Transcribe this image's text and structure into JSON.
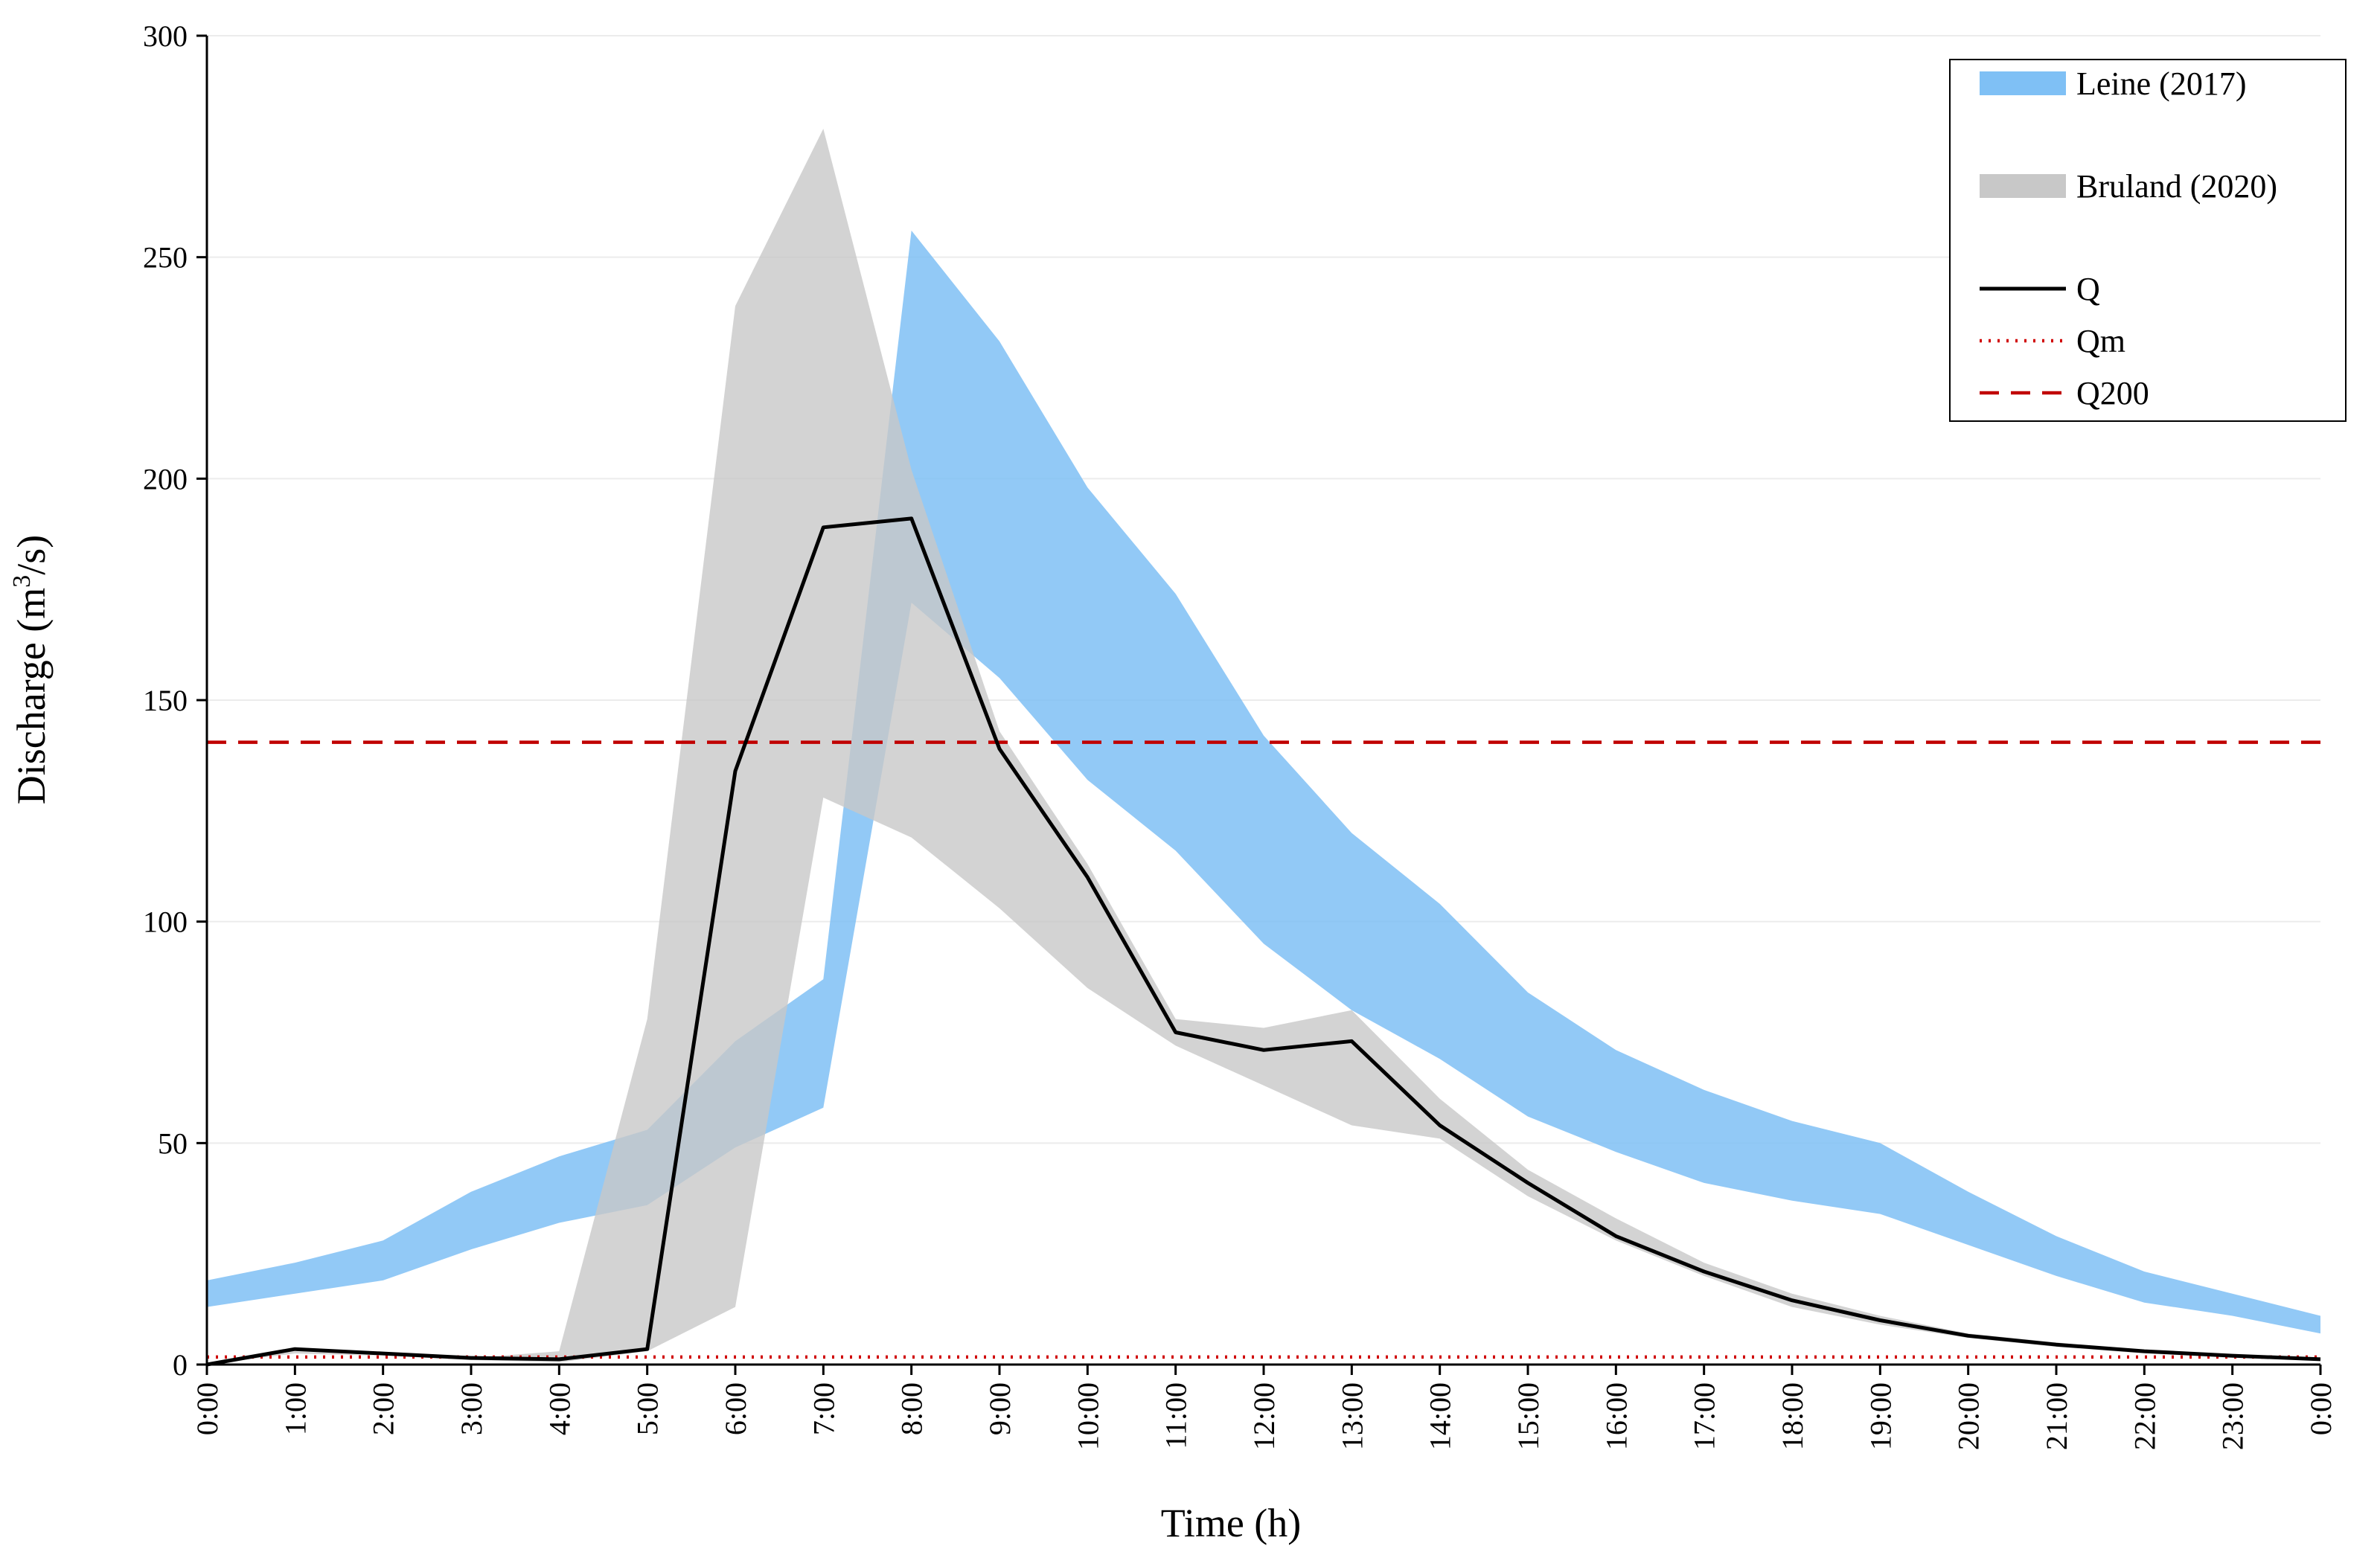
{
  "chart_data": {
    "type": "line",
    "title": "",
    "xlabel": "Time (h)",
    "ylabel_main": "Discharge (m",
    "ylabel_sup": "3",
    "ylabel_end": "/s)",
    "ylim": [
      0,
      300
    ],
    "yticks": [
      0,
      50,
      100,
      150,
      200,
      250,
      300
    ],
    "grid": true,
    "legend_position": "top-right",
    "categories": [
      "0:00",
      "1:00",
      "2:00",
      "3:00",
      "4:00",
      "5:00",
      "6:00",
      "7:00",
      "8:00",
      "9:00",
      "10:00",
      "11:00",
      "12:00",
      "13:00",
      "14:00",
      "15:00",
      "16:00",
      "17:00",
      "18:00",
      "19:00",
      "20:00",
      "21:00",
      "22:00",
      "23:00",
      "0:00"
    ],
    "bands": [
      {
        "name": "Leine (2017)",
        "color": "#7fc0f5",
        "upper_x": [
          0,
          1,
          2,
          3,
          4,
          5,
          6,
          7,
          7,
          8,
          9,
          10,
          11,
          12,
          13,
          14,
          15,
          16,
          17,
          18,
          19,
          20,
          21,
          22,
          23,
          24
        ],
        "upper_y": [
          19,
          23,
          28,
          39,
          47,
          53,
          73,
          87,
          87,
          256,
          231,
          198,
          174,
          142,
          120,
          104,
          84,
          71,
          62,
          55,
          50,
          39,
          29,
          21,
          16,
          11
        ],
        "lower_x": [
          0,
          1,
          2,
          3,
          4,
          5,
          6,
          7,
          7,
          8,
          9,
          10,
          11,
          12,
          13,
          14,
          15,
          16,
          17,
          18,
          19,
          20,
          21,
          22,
          23,
          24
        ],
        "lower_y": [
          13,
          16,
          19,
          26,
          32,
          36,
          49,
          58,
          58,
          172,
          155,
          132,
          116,
          95,
          80,
          69,
          56,
          48,
          41,
          37,
          34,
          27,
          20,
          14,
          11,
          7
        ]
      },
      {
        "name": "Bruland (2020)",
        "color": "#c8c8c8",
        "upper_x": [
          0,
          1,
          2,
          3,
          4,
          5,
          6,
          7,
          8,
          9,
          10,
          11,
          12,
          13,
          14,
          15,
          16,
          17,
          18,
          19,
          20,
          21,
          22,
          23,
          24
        ],
        "upper_y": [
          0,
          3,
          2,
          1.5,
          3,
          78,
          239,
          279,
          202,
          143,
          113,
          78,
          76,
          80,
          60,
          44,
          33,
          23,
          16,
          11,
          7,
          5,
          3,
          2,
          1.5
        ],
        "lower_x": [
          0,
          1,
          2,
          3,
          4,
          5,
          6,
          7,
          8,
          9,
          10,
          11,
          12,
          13,
          14,
          15,
          16,
          17,
          18,
          19,
          20,
          21,
          22,
          23,
          24
        ],
        "lower_y": [
          0,
          2.5,
          2,
          1,
          0.5,
          3,
          13,
          128,
          119,
          103,
          85,
          72,
          63,
          54,
          51,
          38,
          28,
          20,
          13,
          9,
          6,
          4,
          2.5,
          1.5,
          1
        ]
      }
    ],
    "series": [
      {
        "name": "Q",
        "color": "#000000",
        "style": "solid",
        "values": [
          0,
          3.5,
          2.5,
          1.5,
          1.2,
          3.5,
          134,
          189,
          191,
          139,
          110,
          75,
          71,
          73,
          54,
          41,
          29,
          21,
          14.5,
          10,
          6.5,
          4.5,
          3,
          2,
          1.2
        ]
      },
      {
        "name": "Qm",
        "color": "#d00000",
        "style": "dotted",
        "values": [
          1.7,
          1.7,
          1.7,
          1.7,
          1.7,
          1.7,
          1.7,
          1.7,
          1.7,
          1.7,
          1.7,
          1.7,
          1.7,
          1.7,
          1.7,
          1.7,
          1.7,
          1.7,
          1.7,
          1.7,
          1.7,
          1.7,
          1.7,
          1.7,
          1.7
        ]
      },
      {
        "name": "Q200",
        "color": "#c00000",
        "style": "dashed",
        "values": [
          140.5,
          140.5,
          140.5,
          140.5,
          140.5,
          140.5,
          140.5,
          140.5,
          140.5,
          140.5,
          140.5,
          140.5,
          140.5,
          140.5,
          140.5,
          140.5,
          140.5,
          140.5,
          140.5,
          140.5,
          140.5,
          140.5,
          140.5,
          140.5,
          140.5
        ]
      }
    ],
    "legend": [
      {
        "label": "Leine (2017)",
        "kind": "band",
        "color": "#7fc0f5"
      },
      {
        "label": "Bruland (2020)",
        "kind": "band",
        "color": "#c8c8c8"
      },
      {
        "label": "Q",
        "kind": "solid",
        "color": "#000000"
      },
      {
        "label": "Qm",
        "kind": "dotted",
        "color": "#d00000"
      },
      {
        "label": "Q200",
        "kind": "dashed",
        "color": "#c00000"
      }
    ]
  }
}
